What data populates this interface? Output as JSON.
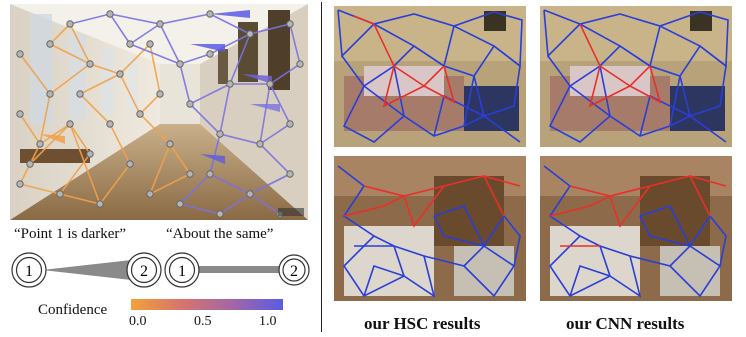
{
  "left_panel": {
    "darker_caption": "“Point 1 is darker”",
    "same_caption": "“About the same”",
    "point_1_label": "1",
    "point_2_label": "2",
    "legend": {
      "title": "Confidence",
      "ticks": [
        "0.0",
        "0.5",
        "1.0"
      ],
      "gradient": [
        "#f3a13b",
        "#d6756c",
        "#a466a6",
        "#5a5be6"
      ]
    }
  },
  "right_panel": {
    "hsc_label": "our HSC results",
    "cnn_label": "our CNN results"
  },
  "colors": {
    "orange": "#f0a24a",
    "purple": "#7b72e0",
    "red_edge": "#e8302a",
    "blue_edge": "#2a3ed8",
    "node": "#9a9a9a"
  }
}
